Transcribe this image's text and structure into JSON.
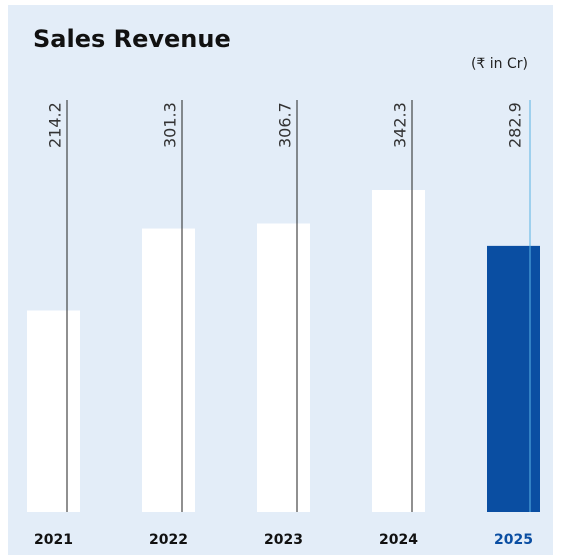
{
  "chart_data": {
    "type": "bar",
    "title": "Sales Revenue",
    "subtitle": "(₹ in Cr)",
    "categories": [
      "2021",
      "2022",
      "2023",
      "2024",
      "2025"
    ],
    "values": [
      214.2,
      301.3,
      306.7,
      342.3,
      282.9
    ],
    "colors": [
      "#ffffff",
      "#ffffff",
      "#ffffff",
      "#ffffff",
      "#0a4ea2"
    ],
    "line_colors": [
      "#222222",
      "#222222",
      "#222222",
      "#222222",
      "#5ab4e5"
    ],
    "background": "#e3edf8"
  }
}
